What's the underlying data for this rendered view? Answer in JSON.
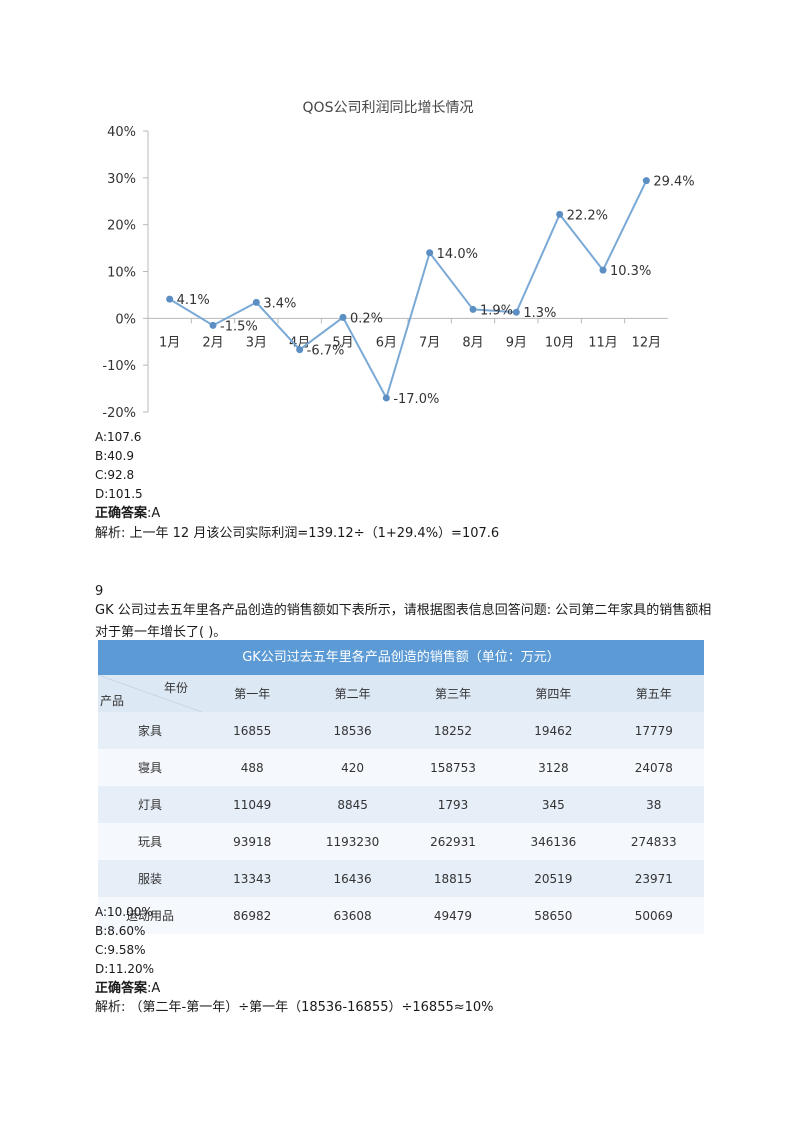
{
  "chart_data": {
    "type": "line",
    "title": "QOS公司利润同比增长情况",
    "categories": [
      "1月",
      "2月",
      "3月",
      "4月",
      "5月",
      "6月",
      "7月",
      "8月",
      "9月",
      "10月",
      "11月",
      "12月"
    ],
    "values": [
      4.1,
      -1.5,
      3.4,
      -6.7,
      0.2,
      -17.0,
      14.0,
      1.9,
      1.3,
      22.2,
      10.3,
      29.4
    ],
    "data_labels": [
      "4.1%",
      "-1.5%",
      "3.4%",
      "-6.7%",
      "0.2%",
      "-17.0%",
      "14.0%",
      "1.9%",
      "1.3%",
      "22.2%",
      "10.3%",
      "29.4%"
    ],
    "y_ticks": [
      "40%",
      "30%",
      "20%",
      "10%",
      "0%",
      "-10%",
      "-20%"
    ],
    "ylim": [
      -20,
      40
    ],
    "series_color": "#7aa9d6",
    "grid": false
  },
  "q8": {
    "options": [
      "A:107.6",
      "B:40.9",
      "C:92.8",
      "D:101.5"
    ],
    "answer_label": "正确答案",
    "answer_value": ":A",
    "analysis": "解析: 上一年 12 月该公司实际利润=139.12÷（1+29.4%）=107.6"
  },
  "q9": {
    "number": "9",
    "question": "GK 公司过去五年里各产品创造的销售额如下表所示，请根据图表信息回答问题: 公司第二年家具的销售额相对于第一年增长了( )。",
    "table": {
      "title": "GK公司过去五年里各产品创造的销售额（单位：万元）",
      "corner_year": "年份",
      "corner_product": "产品",
      "columns": [
        "第一年",
        "第二年",
        "第三年",
        "第四年",
        "第五年"
      ],
      "rows": [
        {
          "name": "家具",
          "values": [
            "16855",
            "18536",
            "18252",
            "19462",
            "17779"
          ]
        },
        {
          "name": "寝具",
          "values": [
            "488",
            "420",
            "158753",
            "3128",
            "24078"
          ]
        },
        {
          "name": "灯具",
          "values": [
            "11049",
            "8845",
            "1793",
            "345",
            "38"
          ]
        },
        {
          "name": "玩具",
          "values": [
            "93918",
            "1193230",
            "262931",
            "346136",
            "274833"
          ]
        },
        {
          "name": "服装",
          "values": [
            "13343",
            "16436",
            "18815",
            "20519",
            "23971"
          ]
        },
        {
          "name": "运动用品",
          "values": [
            "86982",
            "63608",
            "49479",
            "58650",
            "50069"
          ]
        }
      ],
      "header_color": "#5b9ad5"
    },
    "options": [
      "A:10.00%",
      "B:8.60%",
      "C:9.58%",
      "D:11.20%"
    ],
    "answer_label": "正确答案",
    "answer_value": ":A",
    "analysis": "解析: （第二年-第一年）÷第一年（18536-16855）÷16855≈10%"
  }
}
